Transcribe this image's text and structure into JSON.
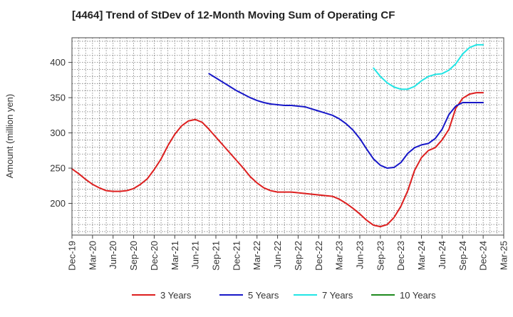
{
  "chart_data": {
    "type": "line",
    "title": "[4464]  Trend of StDev of 12-Month Moving Sum of Operating CF",
    "ylabel": "Amount (million yen)",
    "xlabel": "",
    "ylim": [
      155,
      435
    ],
    "yticks": [
      200,
      250,
      300,
      350,
      400
    ],
    "grid": true,
    "legend_position": "bottom",
    "x_start": "2019-12",
    "x_end": "2025-03",
    "xtick_labels": [
      "Dec-19",
      "Mar-20",
      "Jun-20",
      "Sep-20",
      "Dec-20",
      "Mar-21",
      "Jun-21",
      "Sep-21",
      "Dec-21",
      "Mar-22",
      "Jun-22",
      "Sep-22",
      "Dec-22",
      "Mar-23",
      "Jun-23",
      "Sep-23",
      "Dec-23",
      "Mar-24",
      "Jun-24",
      "Sep-24",
      "Dec-24",
      "Mar-25"
    ],
    "series": [
      {
        "name": "3 Years",
        "color": "#dd1f1f",
        "x": [
          "2019-12",
          "2020-01",
          "2020-02",
          "2020-03",
          "2020-04",
          "2020-05",
          "2020-06",
          "2020-07",
          "2020-08",
          "2020-09",
          "2020-10",
          "2020-11",
          "2020-12",
          "2021-01",
          "2021-02",
          "2021-03",
          "2021-04",
          "2021-05",
          "2021-06",
          "2021-07",
          "2021-08",
          "2021-09",
          "2021-10",
          "2021-11",
          "2021-12",
          "2022-01",
          "2022-02",
          "2022-03",
          "2022-04",
          "2022-05",
          "2022-06",
          "2022-07",
          "2022-08",
          "2022-09",
          "2022-10",
          "2022-11",
          "2022-12",
          "2023-01",
          "2023-02",
          "2023-03",
          "2023-04",
          "2023-05",
          "2023-06",
          "2023-07",
          "2023-08",
          "2023-09",
          "2023-10",
          "2023-11",
          "2023-12",
          "2024-01",
          "2024-02",
          "2024-03",
          "2024-04",
          "2024-05",
          "2024-06",
          "2024-07",
          "2024-08",
          "2024-09",
          "2024-10",
          "2024-11",
          "2024-12"
        ],
        "values": [
          249,
          242,
          234,
          227,
          222,
          218,
          217,
          217,
          218,
          221,
          227,
          235,
          248,
          263,
          282,
          298,
          310,
          317,
          319,
          315,
          305,
          294,
          283,
          272,
          261,
          250,
          238,
          229,
          222,
          218,
          216,
          216,
          216,
          215,
          214,
          213,
          212,
          211,
          210,
          206,
          200,
          193,
          185,
          176,
          169,
          167,
          170,
          180,
          196,
          218,
          247,
          265,
          275,
          279,
          290,
          305,
          335,
          349,
          355,
          357,
          357
        ]
      },
      {
        "name": "5 Years",
        "color": "#1717c8",
        "x": [
          "2021-08",
          "2021-09",
          "2021-10",
          "2021-11",
          "2021-12",
          "2022-01",
          "2022-02",
          "2022-03",
          "2022-04",
          "2022-05",
          "2022-06",
          "2022-07",
          "2022-08",
          "2022-09",
          "2022-10",
          "2022-11",
          "2022-12",
          "2023-01",
          "2023-02",
          "2023-03",
          "2023-04",
          "2023-05",
          "2023-06",
          "2023-07",
          "2023-08",
          "2023-09",
          "2023-10",
          "2023-11",
          "2023-12",
          "2024-01",
          "2024-02",
          "2024-03",
          "2024-04",
          "2024-05",
          "2024-06",
          "2024-07",
          "2024-08",
          "2024-09",
          "2024-10",
          "2024-11",
          "2024-12"
        ],
        "values": [
          384,
          378,
          372,
          366,
          360,
          355,
          350,
          346,
          343,
          341,
          340,
          339,
          339,
          338,
          337,
          334,
          331,
          328,
          325,
          320,
          313,
          304,
          292,
          277,
          263,
          254,
          250,
          251,
          258,
          271,
          279,
          283,
          285,
          292,
          305,
          326,
          338,
          343,
          343,
          343,
          343
        ]
      },
      {
        "name": "7 Years",
        "color": "#22e5e5",
        "x": [
          "2023-08",
          "2023-09",
          "2023-10",
          "2023-11",
          "2023-12",
          "2024-01",
          "2024-02",
          "2024-03",
          "2024-04",
          "2024-05",
          "2024-06",
          "2024-07",
          "2024-08",
          "2024-09",
          "2024-10",
          "2024-11",
          "2024-12"
        ],
        "values": [
          392,
          380,
          371,
          365,
          362,
          362,
          366,
          374,
          380,
          383,
          384,
          389,
          398,
          412,
          421,
          425,
          425
        ]
      },
      {
        "name": "10 Years",
        "color": "#1f8a1f",
        "x": [],
        "values": []
      }
    ]
  }
}
